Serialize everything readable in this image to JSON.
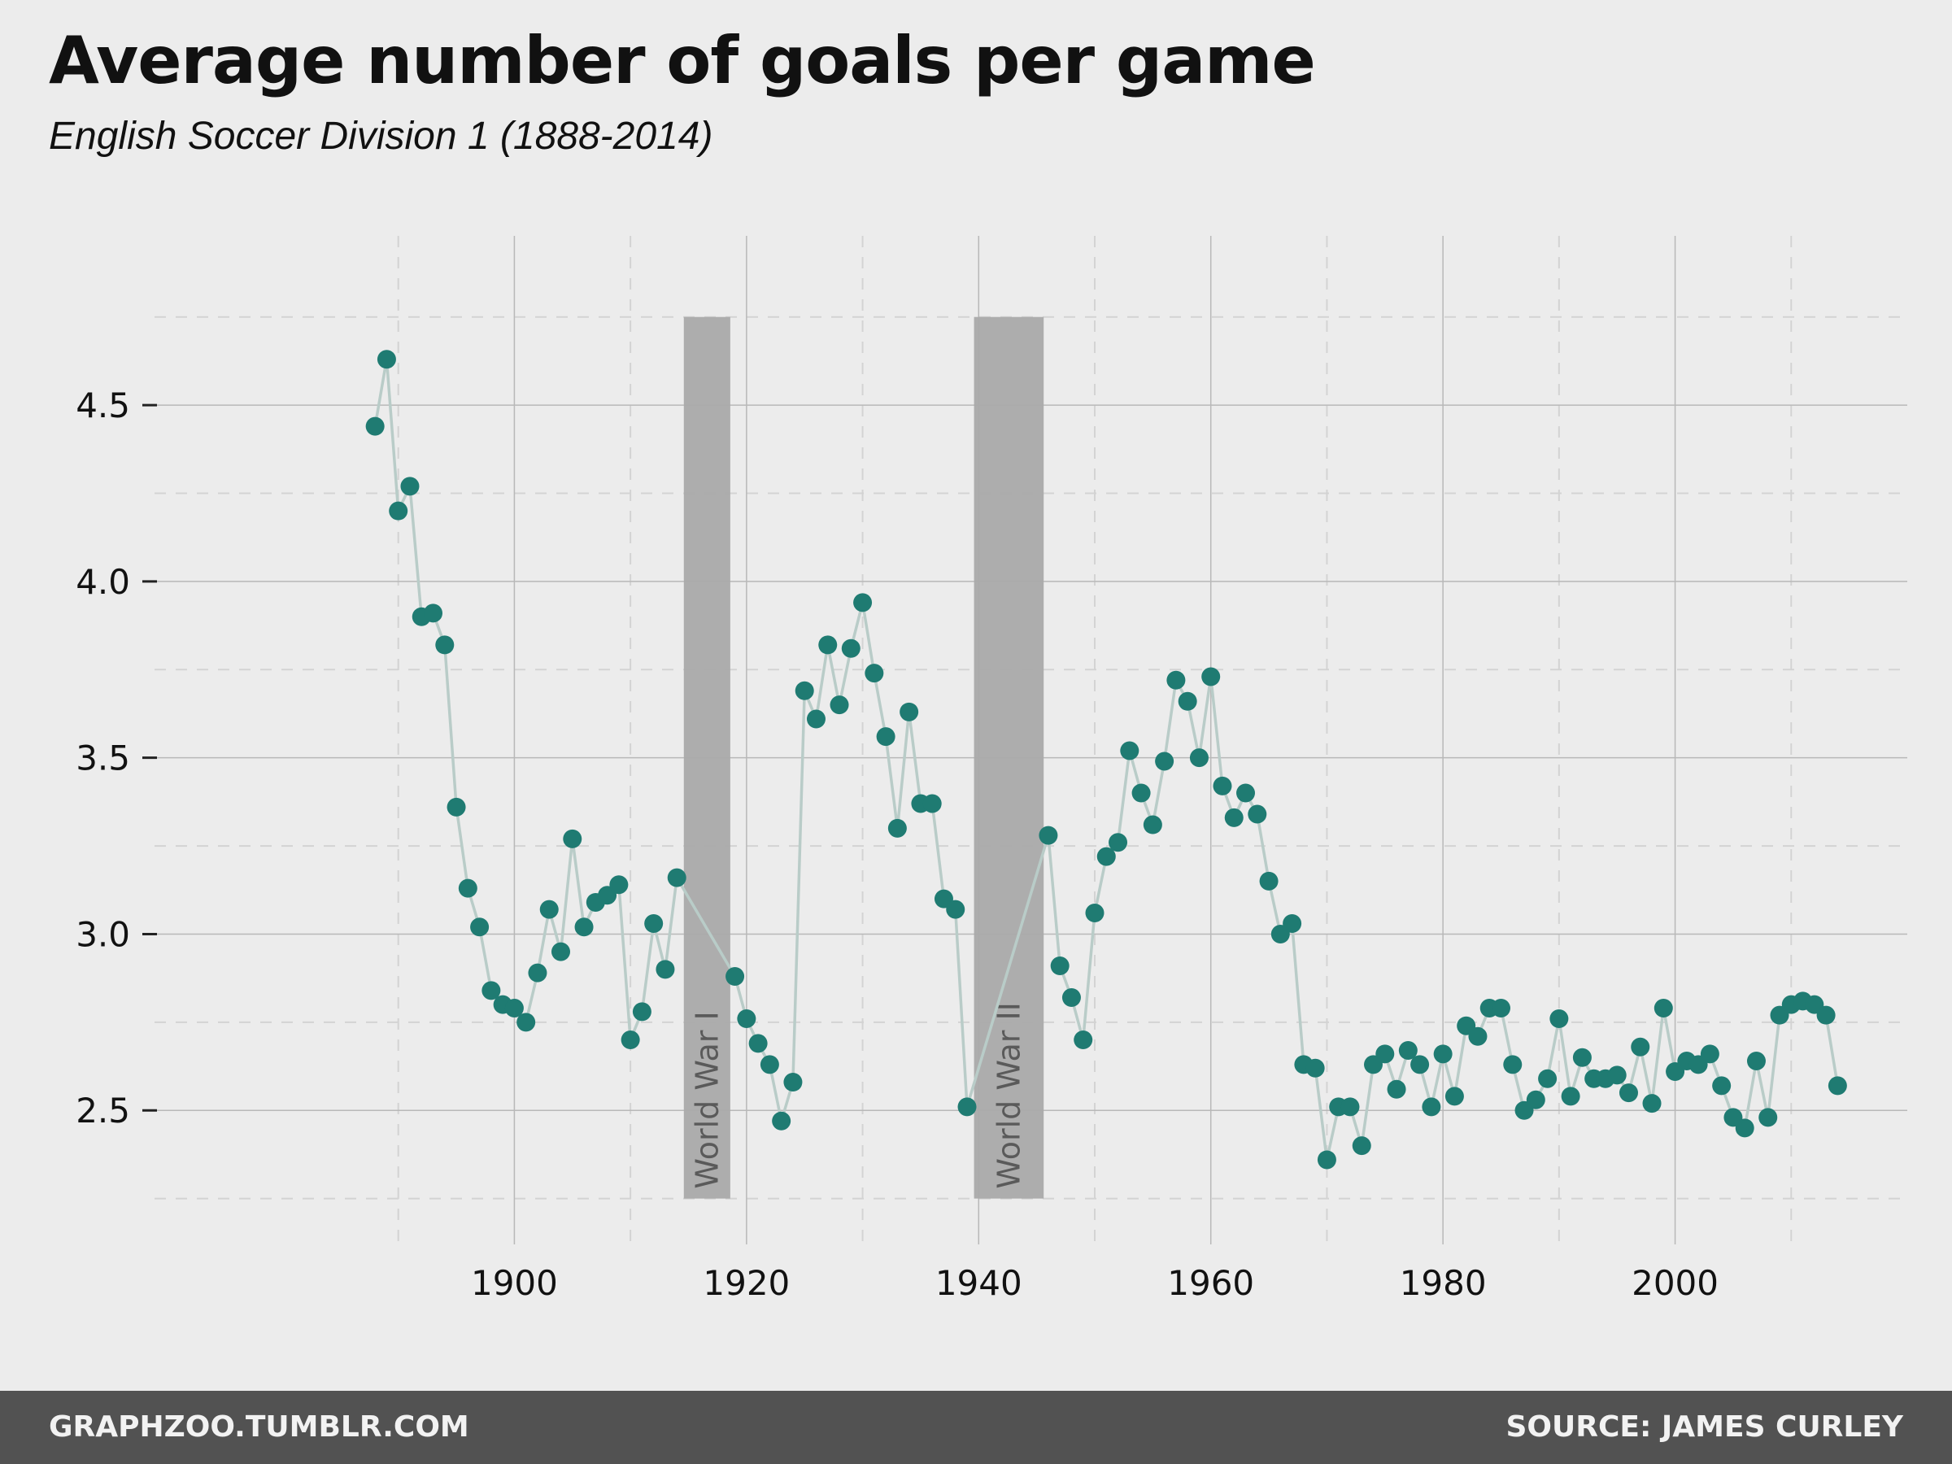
{
  "header": {
    "title": "Average number of goals per game",
    "subtitle": "English Soccer Division 1 (1888-2014)"
  },
  "footer": {
    "left": "GRAPHZOO.TUMBLR.COM",
    "right": "SOURCE: JAMES CURLEY"
  },
  "colors": {
    "point": "#1f7b72",
    "line": "#b9ccc8",
    "band": "#aaaaaa",
    "background": "#ececec",
    "footer_bg": "#525252"
  },
  "chart_data": {
    "type": "line",
    "title": "Average number of goals per game",
    "subtitle": "English Soccer Division 1 (1888-2014)",
    "xlabel": "",
    "ylabel": "",
    "xlim": [
      1869,
      2020
    ],
    "ylim": [
      2.12,
      4.98
    ],
    "x_ticks": [
      1900,
      1920,
      1940,
      1960,
      1980,
      2000
    ],
    "y_ticks": [
      2.5,
      3.0,
      3.5,
      4.0,
      4.5
    ],
    "y_tick_labels": [
      "2.5",
      "3.0",
      "3.5",
      "4.0",
      "4.5"
    ],
    "grid": true,
    "markers": "points with connecting line",
    "annotations": [
      {
        "label": "World War I",
        "x_start": 1914.6,
        "x_end": 1918.6,
        "y_start": 2.25,
        "y_end": 4.75
      },
      {
        "label": "World War II",
        "x_start": 1939.6,
        "x_end": 1945.6,
        "y_start": 2.25,
        "y_end": 4.75
      }
    ],
    "series": [
      {
        "points": [
          [
            1888,
            4.44
          ],
          [
            1889,
            4.63
          ],
          [
            1890,
            4.2
          ],
          [
            1891,
            4.27
          ],
          [
            1892,
            3.9
          ],
          [
            1893,
            3.91
          ],
          [
            1894,
            3.82
          ],
          [
            1895,
            3.36
          ],
          [
            1896,
            3.13
          ],
          [
            1897,
            3.02
          ],
          [
            1898,
            2.84
          ],
          [
            1899,
            2.8
          ],
          [
            1900,
            2.79
          ],
          [
            1901,
            2.75
          ],
          [
            1902,
            2.89
          ],
          [
            1903,
            3.07
          ],
          [
            1904,
            2.95
          ],
          [
            1905,
            3.27
          ],
          [
            1906,
            3.02
          ],
          [
            1907,
            3.09
          ],
          [
            1908,
            3.11
          ],
          [
            1909,
            3.14
          ],
          [
            1910,
            2.7
          ],
          [
            1911,
            2.78
          ],
          [
            1912,
            3.03
          ],
          [
            1913,
            2.9
          ],
          [
            1914,
            3.16
          ],
          [
            1919,
            2.88
          ],
          [
            1920,
            2.76
          ],
          [
            1921,
            2.69
          ],
          [
            1922,
            2.63
          ],
          [
            1923,
            2.47
          ],
          [
            1924,
            2.58
          ],
          [
            1925,
            3.69
          ],
          [
            1926,
            3.61
          ],
          [
            1927,
            3.82
          ],
          [
            1928,
            3.65
          ],
          [
            1929,
            3.81
          ],
          [
            1930,
            3.94
          ],
          [
            1931,
            3.74
          ],
          [
            1932,
            3.56
          ],
          [
            1933,
            3.3
          ],
          [
            1934,
            3.63
          ],
          [
            1935,
            3.37
          ],
          [
            1936,
            3.37
          ],
          [
            1937,
            3.1
          ],
          [
            1938,
            3.07
          ],
          [
            1939,
            2.51
          ],
          [
            1946,
            3.28
          ],
          [
            1947,
            2.91
          ],
          [
            1948,
            2.82
          ],
          [
            1949,
            2.7
          ],
          [
            1950,
            3.06
          ],
          [
            1951,
            3.22
          ],
          [
            1952,
            3.26
          ],
          [
            1953,
            3.52
          ],
          [
            1954,
            3.4
          ],
          [
            1955,
            3.31
          ],
          [
            1956,
            3.49
          ],
          [
            1957,
            3.72
          ],
          [
            1958,
            3.66
          ],
          [
            1959,
            3.5
          ],
          [
            1960,
            3.73
          ],
          [
            1961,
            3.42
          ],
          [
            1962,
            3.33
          ],
          [
            1963,
            3.4
          ],
          [
            1964,
            3.34
          ],
          [
            1965,
            3.15
          ],
          [
            1966,
            3.0
          ],
          [
            1967,
            3.03
          ],
          [
            1968,
            2.63
          ],
          [
            1969,
            2.62
          ],
          [
            1970,
            2.36
          ],
          [
            1971,
            2.51
          ],
          [
            1972,
            2.51
          ],
          [
            1973,
            2.4
          ],
          [
            1974,
            2.63
          ],
          [
            1975,
            2.66
          ],
          [
            1976,
            2.56
          ],
          [
            1977,
            2.67
          ],
          [
            1978,
            2.63
          ],
          [
            1979,
            2.51
          ],
          [
            1980,
            2.66
          ],
          [
            1981,
            2.54
          ],
          [
            1982,
            2.74
          ],
          [
            1983,
            2.71
          ],
          [
            1984,
            2.79
          ],
          [
            1985,
            2.79
          ],
          [
            1986,
            2.63
          ],
          [
            1987,
            2.5
          ],
          [
            1988,
            2.53
          ],
          [
            1989,
            2.59
          ],
          [
            1990,
            2.76
          ],
          [
            1991,
            2.54
          ],
          [
            1992,
            2.65
          ],
          [
            1993,
            2.59
          ],
          [
            1994,
            2.59
          ],
          [
            1995,
            2.6
          ],
          [
            1996,
            2.55
          ],
          [
            1997,
            2.68
          ],
          [
            1998,
            2.52
          ],
          [
            1999,
            2.79
          ],
          [
            2000,
            2.61
          ],
          [
            2001,
            2.64
          ],
          [
            2002,
            2.63
          ],
          [
            2003,
            2.66
          ],
          [
            2004,
            2.57
          ],
          [
            2005,
            2.48
          ],
          [
            2006,
            2.45
          ],
          [
            2007,
            2.64
          ],
          [
            2008,
            2.48
          ],
          [
            2009,
            2.77
          ],
          [
            2010,
            2.8
          ],
          [
            2011,
            2.81
          ],
          [
            2012,
            2.8
          ],
          [
            2013,
            2.77
          ],
          [
            2014,
            2.57
          ]
        ]
      }
    ]
  }
}
